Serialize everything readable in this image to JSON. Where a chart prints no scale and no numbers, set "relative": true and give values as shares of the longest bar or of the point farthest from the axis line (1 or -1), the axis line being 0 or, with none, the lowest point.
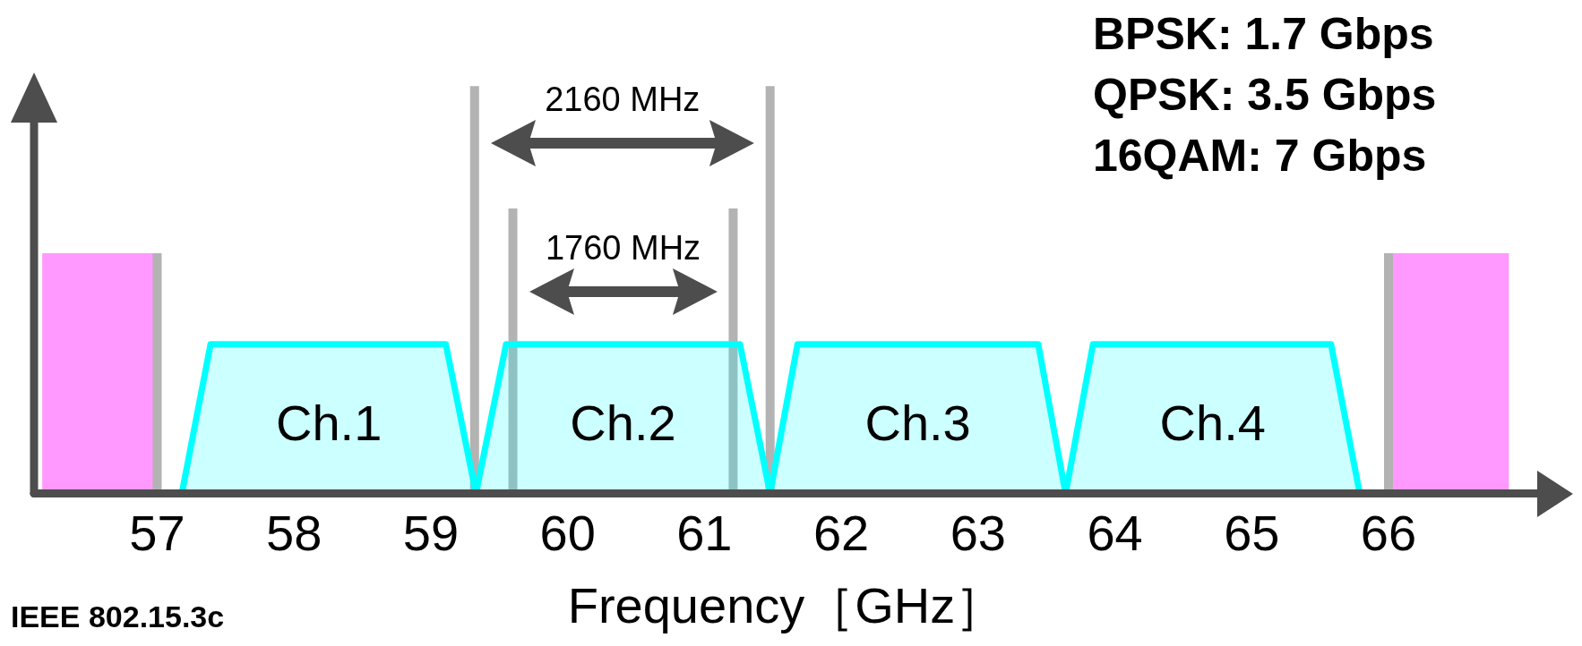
{
  "chart_data": {
    "type": "area",
    "relative": true,
    "xlabel": "Frequency［GHz］",
    "xlim": [
      56.1,
      67.1
    ],
    "xticks": [
      57,
      58,
      59,
      60,
      61,
      62,
      63,
      64,
      65,
      66
    ],
    "grid": false,
    "legend": false,
    "marker": "none",
    "line_style": "solid",
    "series": [
      {
        "name": "Ch.1",
        "color": "#00ffff",
        "x": [
          57.18,
          57.39,
          59.11,
          59.33
        ],
        "values": [
          0,
          1,
          1,
          0
        ]
      },
      {
        "name": "Ch.2",
        "color": "#00ffff",
        "x": [
          59.33,
          59.55,
          61.26,
          61.48
        ],
        "values": [
          0,
          1,
          1,
          0
        ]
      },
      {
        "name": "Ch.3",
        "color": "#00ffff",
        "x": [
          61.48,
          61.68,
          63.44,
          63.64
        ],
        "values": [
          0,
          1,
          1,
          0
        ]
      },
      {
        "name": "Ch.4",
        "color": "#00ffff",
        "x": [
          63.64,
          63.84,
          65.58,
          65.79
        ],
        "values": [
          0,
          1,
          1,
          0
        ]
      }
    ],
    "ref_lines": [
      {
        "axis": "x",
        "value": 57,
        "color": "#b3b3b3"
      },
      {
        "axis": "x",
        "value": 59.32,
        "color": "#b3b3b3"
      },
      {
        "axis": "x",
        "value": 59.6,
        "color": "#b3b3b3"
      },
      {
        "axis": "x",
        "value": 61.21,
        "color": "#b3b3b3"
      },
      {
        "axis": "x",
        "value": 61.48,
        "color": "#b3b3b3"
      },
      {
        "axis": "x",
        "value": 66,
        "color": "#b3b3b3"
      }
    ],
    "bands": [
      {
        "axis": "x",
        "from": 56.16,
        "to": 57,
        "color": "#ff00ff"
      },
      {
        "axis": "x",
        "from": 66,
        "to": 66.88,
        "color": "#ff00ff"
      }
    ],
    "annotations": [
      "2160 MHz",
      "1760 MHz",
      "BPSK: 1.7 Gbps",
      "QPSK: 3.5 Gbps",
      "16QAM: 7 Gbps",
      "IEEE 802.15.3c"
    ]
  }
}
